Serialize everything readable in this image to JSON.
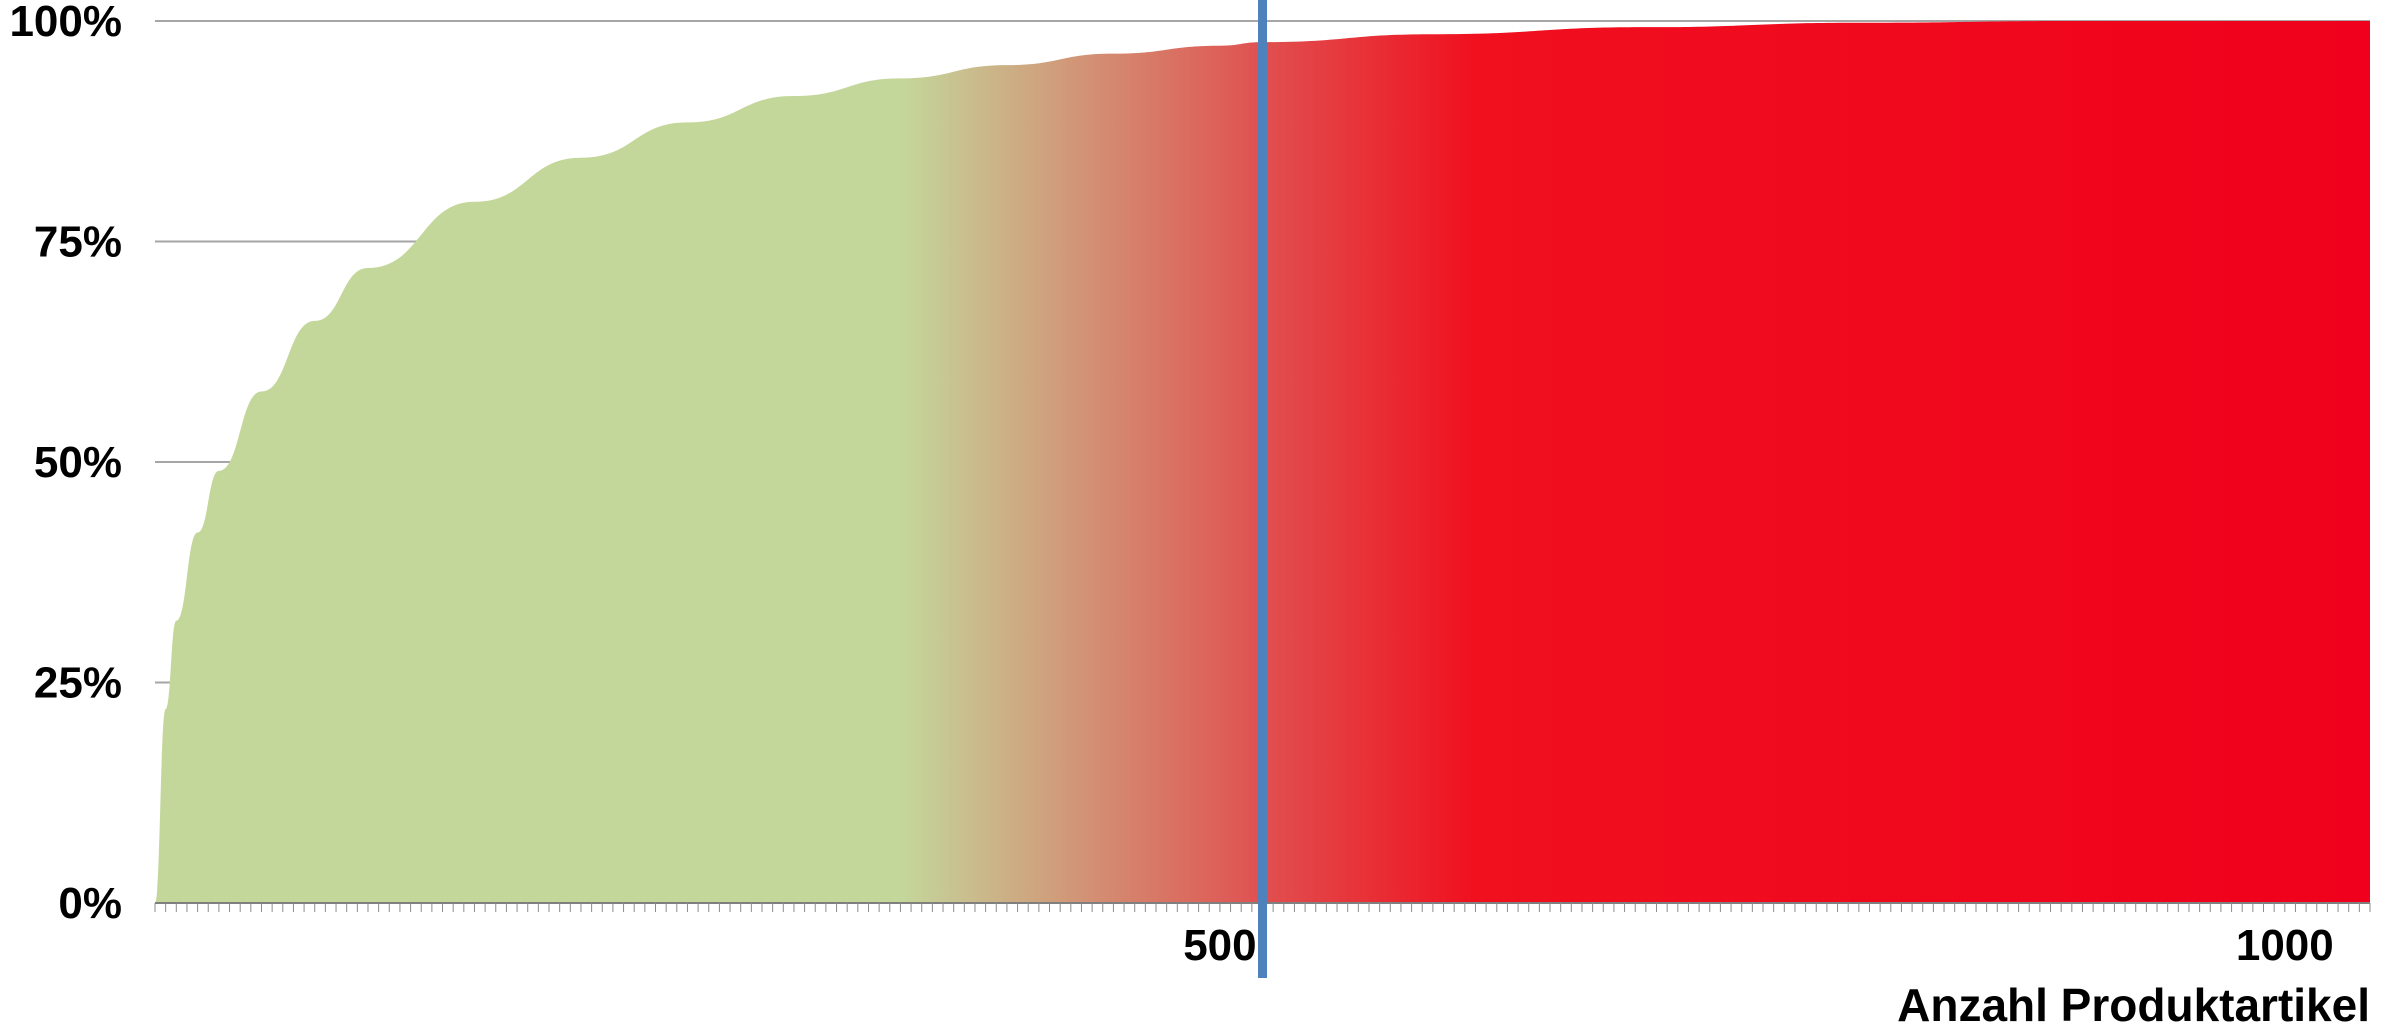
{
  "chart_data": {
    "type": "area",
    "title": "",
    "xlabel": "Anzahl Produktartikel",
    "ylabel": "",
    "xlim": [
      0,
      1040
    ],
    "ylim": [
      0,
      100
    ],
    "y_ticks": [
      "0%",
      "25%",
      "50%",
      "75%",
      "100%"
    ],
    "y_tick_values": [
      0,
      25,
      50,
      75,
      100
    ],
    "x_ticks": [
      "500",
      "1000"
    ],
    "x_tick_values": [
      500,
      1000
    ],
    "grid": true,
    "legend": "none",
    "series": [
      {
        "x": [
          0,
          5,
          10,
          20,
          30,
          50,
          75,
          100,
          150,
          200,
          250,
          300,
          350,
          400,
          450,
          500,
          520,
          600,
          700,
          800,
          900,
          1000,
          1040
        ],
        "values": [
          0,
          22,
          32,
          42,
          49,
          58,
          66,
          72,
          79.5,
          84.5,
          88.5,
          91.5,
          93.5,
          95,
          96.3,
          97.2,
          97.6,
          98.5,
          99.3,
          99.8,
          100,
          100,
          100
        ]
      }
    ],
    "marker_line": {
      "x": 520,
      "color": "#4f81bd"
    },
    "fill_gradient": [
      {
        "x": 0,
        "color": "#c4d79b"
      },
      {
        "x": 350,
        "color": "#c4d79b"
      },
      {
        "x": 520,
        "color": "#e05050"
      },
      {
        "x": 620,
        "color": "#f0101e"
      },
      {
        "x": 1040,
        "color": "#f0001c"
      }
    ]
  }
}
